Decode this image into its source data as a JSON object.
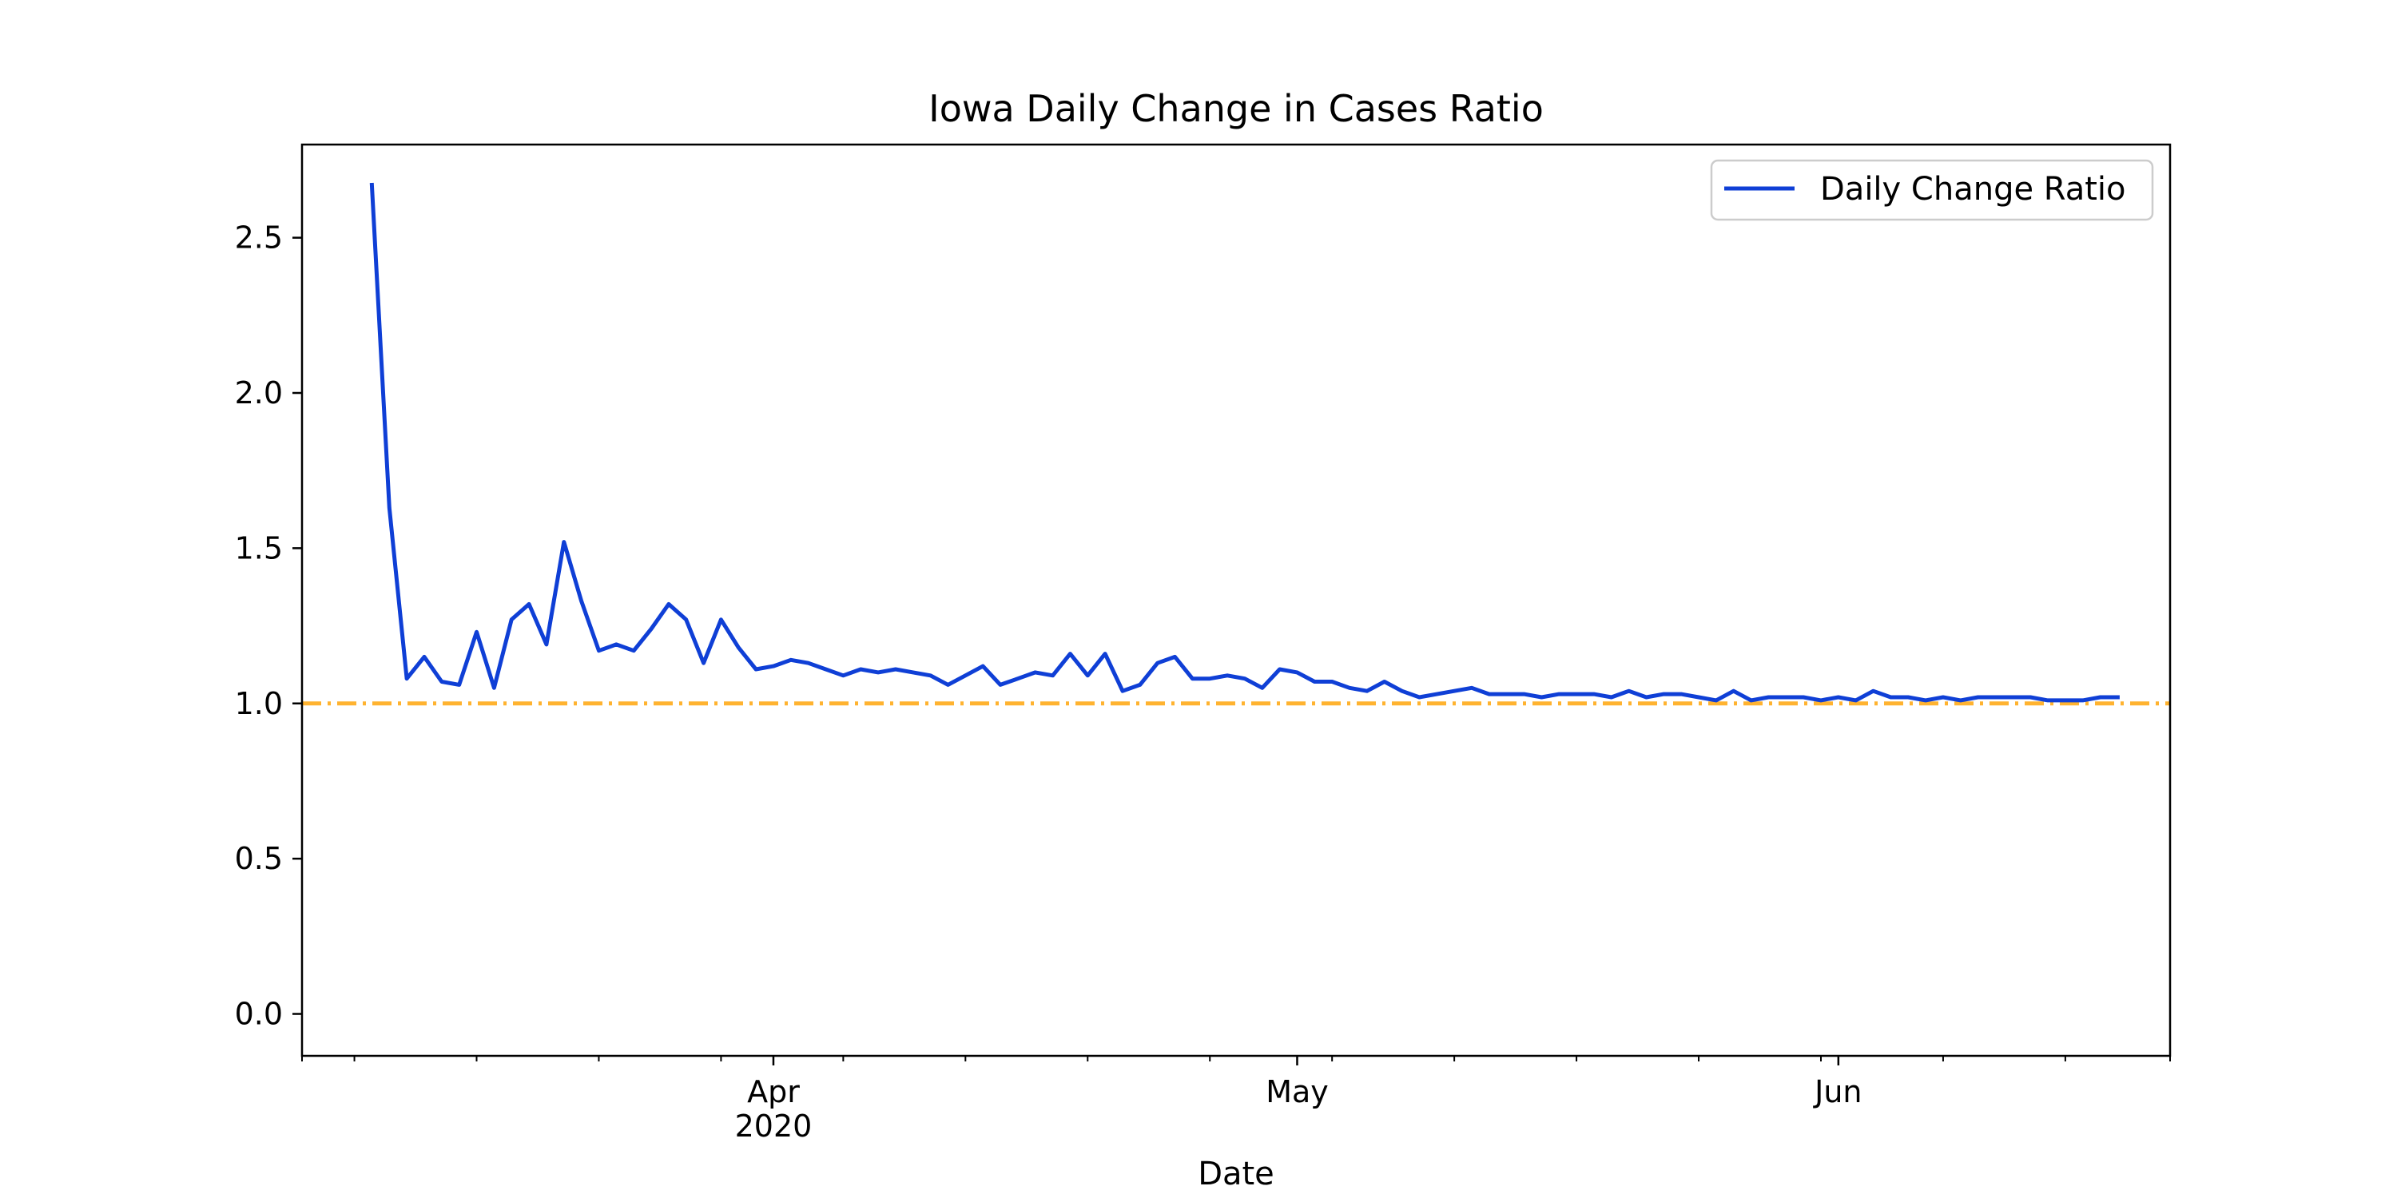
{
  "chart_data": {
    "type": "line",
    "title": "Iowa Daily Change in Cases Ratio",
    "xlabel": "Date",
    "ylabel": "",
    "xlim": [
      "2020-03-05",
      "2020-06-20"
    ],
    "ylim": [
      -0.135,
      2.8
    ],
    "grid": false,
    "legend_position": "top-right",
    "x_tick_labels": [
      {
        "date": "2020-04-01",
        "lines": [
          "Apr",
          "2020"
        ]
      },
      {
        "date": "2020-05-01",
        "lines": [
          "May"
        ]
      },
      {
        "date": "2020-06-01",
        "lines": [
          "Jun"
        ]
      }
    ],
    "x_minor_ticks": [
      "2020-03-05",
      "2020-03-08",
      "2020-03-15",
      "2020-03-22",
      "2020-03-29",
      "2020-04-05",
      "2020-04-12",
      "2020-04-19",
      "2020-04-26",
      "2020-05-03",
      "2020-05-10",
      "2020-05-17",
      "2020-05-24",
      "2020-05-31",
      "2020-06-07",
      "2020-06-14",
      "2020-06-20"
    ],
    "y_ticks": [
      0.0,
      0.5,
      1.0,
      1.5,
      2.0,
      2.5
    ],
    "y_tick_labels": [
      "0.0",
      "0.5",
      "1.0",
      "1.5",
      "2.0",
      "2.5"
    ],
    "reference_line": {
      "y": 1.0,
      "color": "#ffb330",
      "style": "dash-dot"
    },
    "series": [
      {
        "name": "Daily Change Ratio",
        "color": "#0f3fd6",
        "start_date": "2020-03-09",
        "values": [
          2.67,
          1.63,
          1.08,
          1.15,
          1.07,
          1.06,
          1.23,
          1.05,
          1.27,
          1.32,
          1.19,
          1.52,
          1.33,
          1.17,
          1.19,
          1.17,
          1.24,
          1.32,
          1.27,
          1.13,
          1.27,
          1.18,
          1.11,
          1.12,
          1.14,
          1.13,
          1.11,
          1.09,
          1.11,
          1.1,
          1.11,
          1.1,
          1.09,
          1.06,
          1.09,
          1.12,
          1.06,
          1.08,
          1.1,
          1.09,
          1.16,
          1.09,
          1.16,
          1.04,
          1.06,
          1.13,
          1.15,
          1.08,
          1.08,
          1.09,
          1.08,
          1.05,
          1.11,
          1.1,
          1.07,
          1.07,
          1.05,
          1.04,
          1.07,
          1.04,
          1.02,
          1.03,
          1.04,
          1.05,
          1.03,
          1.03,
          1.03,
          1.02,
          1.03,
          1.03,
          1.03,
          1.02,
          1.04,
          1.02,
          1.03,
          1.03,
          1.02,
          1.01,
          1.04,
          1.01,
          1.02,
          1.02,
          1.02,
          1.01,
          1.02,
          1.01,
          1.04,
          1.02,
          1.02,
          1.01,
          1.02,
          1.01,
          1.02,
          1.02,
          1.02,
          1.02,
          1.01,
          1.01,
          1.01,
          1.02,
          1.02
        ]
      }
    ]
  }
}
